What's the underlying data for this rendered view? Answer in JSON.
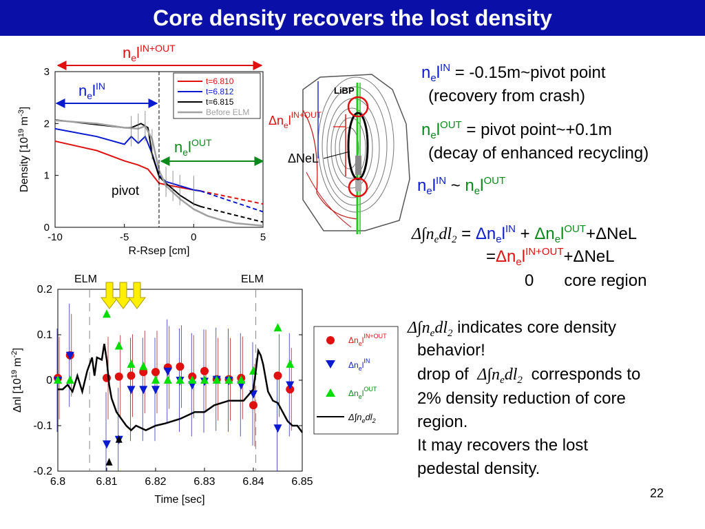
{
  "slide": {
    "title": "Core density recovers the lost density",
    "page_number": "22"
  },
  "labels": {
    "ne": "n",
    "e": "e",
    "l": "l",
    "in": "IN",
    "out": "OUT",
    "inout": "IN+OUT",
    "pivot": "pivot",
    "nel": "NeL",
    "delta": "Δ",
    "libp": "LiBP",
    "elm": "ELM"
  },
  "text_blocks": {
    "line1_rest": " = -0.15m~pivot point",
    "line2": "(recovery from crash)",
    "line3_rest": " = pivot point~+0.1m",
    "line4": "(decay of enhanced recycling)",
    "approx": " ~ ",
    "eq1_rest": " + ",
    "eq1_tail": "+ΔNeL",
    "eq2_prefix": "=",
    "eq2_tail": "+ΔNeL",
    "eq3_a": "0",
    "eq3_b": "core region",
    "para_1": " indicates core density",
    "para_2": "behavior!",
    "para_3a": "drop of",
    "para_3b": "corresponds to",
    "para_4": "2% density reduction of core",
    "para_5": "region.",
    "para_6": "It may recovers the lost",
    "para_7": "pedestal density."
  },
  "colors": {
    "title_bg": "#0a0fa8",
    "red": "#e01010",
    "blue": "#0a1ad0",
    "green": "#0a8a1a",
    "gray": "#a0a0a0"
  },
  "chart_data": [
    {
      "type": "line",
      "xlabel": "R-Rsep [cm]",
      "ylabel": "Density [10^19 m^-3]",
      "xlim": [
        -10,
        5
      ],
      "ylim": [
        0,
        3
      ],
      "xticks": [
        "-10",
        "-5",
        "0",
        "5"
      ],
      "yticks": [
        "0",
        "1",
        "2",
        "3"
      ],
      "pivot_x": -2.6,
      "series": [
        {
          "name": "t=6.810",
          "color": "#e01010",
          "x": [
            -10,
            -7,
            -5,
            -4,
            -3.3,
            -2.5,
            -2,
            -1,
            0,
            0.5
          ],
          "y": [
            1.66,
            1.48,
            1.28,
            1.2,
            1.12,
            0.85,
            0.82,
            0.77,
            0.72,
            0.7
          ],
          "ext_x": [
            0.5,
            5
          ],
          "ext_y": [
            0.7,
            0.45
          ]
        },
        {
          "name": "t=6.812",
          "color": "#0a1ad0",
          "x": [
            -10,
            -7,
            -5,
            -4.5,
            -4,
            -3.5,
            -3,
            -2.5,
            -2,
            -1,
            0,
            0.5
          ],
          "y": [
            1.9,
            1.75,
            1.6,
            1.75,
            1.62,
            1.75,
            1.42,
            1.0,
            0.88,
            0.8,
            0.72,
            0.7
          ],
          "ext_x": [
            0.5,
            5
          ],
          "ext_y": [
            0.7,
            0.3
          ]
        },
        {
          "name": "t=6.815",
          "color": "#000000",
          "x": [
            -10,
            -7,
            -5,
            -4.5,
            -3.8,
            -3.3,
            -3,
            -2.5,
            -2,
            -1,
            0,
            0.5
          ],
          "y": [
            2.07,
            1.98,
            1.92,
            1.92,
            2.0,
            1.92,
            1.4,
            0.98,
            0.85,
            0.62,
            0.45,
            0.4
          ],
          "ext_x": [
            0.5,
            5
          ],
          "ext_y": [
            0.4,
            0.1
          ]
        },
        {
          "name": "Before ELM",
          "color": "#a0a0a0",
          "x": [
            -10,
            -7,
            -5,
            -4,
            -3.5,
            -3,
            -2.5,
            -2,
            -1,
            0,
            1,
            2,
            3,
            5
          ],
          "y": [
            2.06,
            2.0,
            1.92,
            1.9,
            1.95,
            1.7,
            1.1,
            0.8,
            0.55,
            0.35,
            0.22,
            0.14,
            0.08,
            0.03
          ]
        }
      ],
      "annotations": [
        "n_e l^IN+OUT",
        "n_e l^IN",
        "n_e l^OUT",
        "pivot"
      ]
    },
    {
      "type": "scatter",
      "xlabel": "Time [sec]",
      "ylabel": "Δnl [10^19 m^-2]",
      "xlim": [
        6.8,
        6.85
      ],
      "ylim": [
        -0.2,
        0.2
      ],
      "xticks": [
        "6.8",
        "6.81",
        "6.82",
        "6.83",
        "6.84",
        "6.85"
      ],
      "yticks": [
        "-0.2",
        "-0.1",
        "0",
        "0.1",
        "0.2"
      ],
      "elm_times": [
        6.8065,
        6.8405
      ],
      "series": [
        {
          "name": "Δn_e l^IN+OUT",
          "marker": "circle",
          "color": "#e01010",
          "x": [
            6.8,
            6.8025,
            6.81,
            6.8125,
            6.815,
            6.8175,
            6.82,
            6.8225,
            6.825,
            6.8275,
            6.83,
            6.8325,
            6.835,
            6.8375,
            6.84,
            6.845,
            6.8475
          ],
          "y": [
            0.005,
            0.055,
            0.005,
            0.008,
            0.01,
            0.018,
            0.018,
            0.028,
            0.03,
            0.008,
            0.02,
            0.002,
            0.002,
            0.005,
            -0.055,
            0.01,
            -0.02
          ]
        },
        {
          "name": "Δn_e l^IN",
          "marker": "triangle-down",
          "color": "#0a1ad0",
          "x": [
            6.8,
            6.8025,
            6.81,
            6.8125,
            6.815,
            6.8175,
            6.82,
            6.8225,
            6.825,
            6.8275,
            6.83,
            6.8325,
            6.835,
            6.8375,
            6.84,
            6.845,
            6.8475
          ],
          "y": [
            0.0,
            0.055,
            -0.14,
            -0.13,
            -0.02,
            -0.02,
            -0.02,
            0.02,
            0.0,
            -0.01,
            -0.002,
            0.002,
            0.0,
            -0.01,
            -0.03,
            -0.105,
            -0.01
          ]
        },
        {
          "name": "Δn_e l^OUT",
          "marker": "triangle-up",
          "color": "#00dd00",
          "x": [
            6.8,
            6.8025,
            6.81,
            6.8125,
            6.815,
            6.8175,
            6.82,
            6.8225,
            6.825,
            6.8275,
            6.83,
            6.8325,
            6.835,
            6.8375,
            6.84,
            6.845,
            6.8475
          ],
          "y": [
            0.0,
            0.0,
            0.145,
            0.075,
            0.035,
            0.03,
            0.0,
            0.0,
            0.0,
            0.0,
            0.0,
            0.0,
            0.0,
            0.0,
            0.02,
            0.115,
            0.035
          ]
        },
        {
          "name": "Δ∫n_e dl_2",
          "marker": "line",
          "color": "#000000",
          "x": [
            6.8,
            6.801,
            6.802,
            6.803,
            6.804,
            6.805,
            6.806,
            6.807,
            6.8075,
            6.808,
            6.809,
            6.8095,
            6.81,
            6.8105,
            6.811,
            6.812,
            6.813,
            6.814,
            6.815,
            6.816,
            6.818,
            6.82,
            6.822,
            6.825,
            6.828,
            6.83,
            6.832,
            6.835,
            6.838,
            6.84,
            6.8405,
            6.841,
            6.8415,
            6.842,
            6.843,
            6.844,
            6.845,
            6.846,
            6.847,
            6.848,
            6.849,
            6.85
          ],
          "y": [
            -0.02,
            -0.02,
            -0.01,
            -0.025,
            0.01,
            -0.025,
            0.02,
            0.05,
            0.01,
            0.05,
            0.045,
            0.08,
            0.045,
            -0.01,
            -0.04,
            -0.07,
            -0.085,
            -0.1,
            -0.11,
            -0.1,
            -0.11,
            -0.1,
            -0.095,
            -0.085,
            -0.07,
            -0.07,
            -0.055,
            -0.045,
            -0.045,
            -0.02,
            0.02,
            0.065,
            0.055,
            0.035,
            -0.025,
            -0.045,
            -0.05,
            -0.07,
            -0.09,
            -0.1,
            -0.1,
            -0.115
          ]
        }
      ],
      "legend": [
        "Δn_e l^IN+OUT",
        "Δn_e l^IN",
        "Δn_e l^OUT",
        "Δ∫n_e dl_2"
      ]
    }
  ]
}
